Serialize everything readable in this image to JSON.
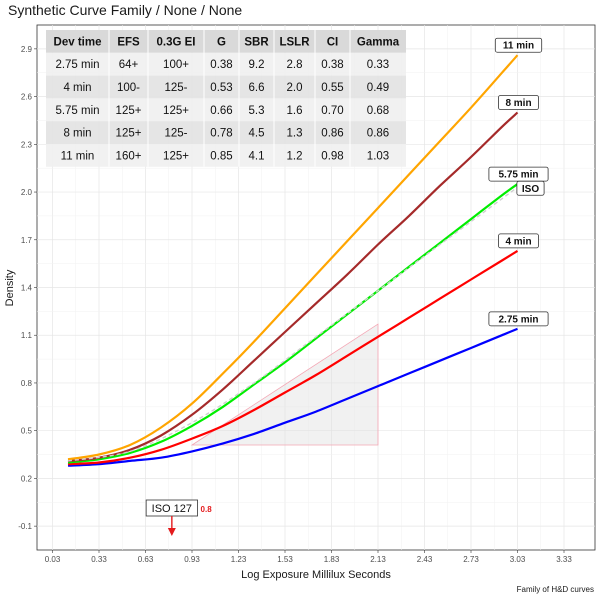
{
  "chart_data": {
    "type": "line",
    "title": "Synthetic Curve Family / None / None",
    "xlabel": "Log Exposure Millilux Seconds",
    "ylabel": "Density",
    "caption": "Family of H&D curves",
    "xlim": [
      -0.07,
      3.53
    ],
    "ylim": [
      -0.25,
      3.05
    ],
    "x_ticks": [
      "0.03",
      "0.33",
      "0.63",
      "0.93",
      "1.23",
      "1.53",
      "1.83",
      "2.13",
      "2.43",
      "2.73",
      "3.03",
      "3.33"
    ],
    "y_ticks": [
      "-0.1",
      "0.2",
      "0.5",
      "0.8",
      "1.1",
      "1.4",
      "1.7",
      "2.0",
      "2.3",
      "2.6",
      "2.9"
    ],
    "grid": true,
    "series": [
      {
        "name": "2.75 min",
        "color": "#0000ff",
        "x": [
          0.13,
          0.33,
          0.53,
          0.73,
          0.93,
          1.13,
          1.33,
          1.53,
          1.73,
          1.93,
          2.13,
          2.33,
          2.53,
          2.73,
          2.93,
          3.03
        ],
        "y": [
          0.28,
          0.29,
          0.31,
          0.33,
          0.37,
          0.42,
          0.48,
          0.55,
          0.62,
          0.7,
          0.78,
          0.86,
          0.94,
          1.02,
          1.1,
          1.14
        ]
      },
      {
        "name": "4 min",
        "color": "#ff0000",
        "x": [
          0.13,
          0.33,
          0.53,
          0.73,
          0.93,
          1.13,
          1.33,
          1.53,
          1.73,
          1.93,
          2.13,
          2.33,
          2.53,
          2.73,
          2.93,
          3.03
        ],
        "y": [
          0.29,
          0.3,
          0.33,
          0.38,
          0.45,
          0.53,
          0.63,
          0.74,
          0.85,
          0.97,
          1.09,
          1.21,
          1.33,
          1.45,
          1.57,
          1.63
        ]
      },
      {
        "name": "5.75 min",
        "color": "#00ee00",
        "x": [
          0.13,
          0.33,
          0.53,
          0.73,
          0.93,
          1.13,
          1.33,
          1.53,
          1.73,
          1.93,
          2.13,
          2.33,
          2.53,
          2.73,
          2.93,
          3.03
        ],
        "y": [
          0.3,
          0.32,
          0.36,
          0.43,
          0.53,
          0.65,
          0.79,
          0.93,
          1.08,
          1.23,
          1.38,
          1.53,
          1.68,
          1.83,
          1.98,
          2.05
        ]
      },
      {
        "name": "8 min",
        "color": "#a52a2a",
        "x": [
          0.13,
          0.33,
          0.53,
          0.73,
          0.93,
          1.13,
          1.33,
          1.53,
          1.73,
          1.93,
          2.13,
          2.33,
          2.53,
          2.73,
          2.93,
          3.03
        ],
        "y": [
          0.31,
          0.33,
          0.38,
          0.47,
          0.6,
          0.76,
          0.94,
          1.12,
          1.3,
          1.48,
          1.67,
          1.85,
          2.04,
          2.22,
          2.41,
          2.5
        ]
      },
      {
        "name": "11 min",
        "color": "#ffa500",
        "x": [
          0.13,
          0.33,
          0.53,
          0.73,
          0.93,
          1.13,
          1.33,
          1.53,
          1.73,
          1.93,
          2.13,
          2.33,
          2.53,
          2.73,
          2.93,
          3.03
        ],
        "y": [
          0.32,
          0.35,
          0.41,
          0.52,
          0.67,
          0.86,
          1.06,
          1.27,
          1.48,
          1.69,
          1.9,
          2.11,
          2.32,
          2.53,
          2.75,
          2.86
        ]
      }
    ],
    "iso_curve": {
      "x": [
        0.13,
        0.53,
        0.93,
        1.33,
        1.73,
        2.13,
        2.53,
        3.03
      ],
      "y": [
        0.31,
        0.37,
        0.55,
        0.8,
        1.09,
        1.38,
        1.67,
        2.03
      ]
    },
    "iso_triangle": {
      "x": [
        0.93,
        2.13,
        2.13
      ],
      "y": [
        0.41,
        0.41,
        1.17
      ]
    },
    "labels": {
      "curve_box_iso": "ISO",
      "iso_marker_label": "ISO 127",
      "iso_marker_value": "0.8",
      "iso_marker_x": 0.8
    },
    "table": {
      "columns": [
        "Dev time",
        "EFS",
        "0.3G EI",
        "G",
        "SBR",
        "LSLR",
        "CI",
        "Gamma"
      ],
      "rows": [
        [
          "2.75 min",
          "64+",
          "100+",
          "0.38",
          "9.2",
          "2.8",
          "0.38",
          "0.33"
        ],
        [
          "4 min",
          "100-",
          "125-",
          "0.53",
          "6.6",
          "2.0",
          "0.55",
          "0.49"
        ],
        [
          "5.75 min",
          "125+",
          "125+",
          "0.66",
          "5.3",
          "1.6",
          "0.70",
          "0.68"
        ],
        [
          "8 min",
          "125+",
          "125-",
          "0.78",
          "4.5",
          "1.3",
          "0.86",
          "0.86"
        ],
        [
          "11 min",
          "160+",
          "125+",
          "0.85",
          "4.1",
          "1.2",
          "0.98",
          "1.03"
        ]
      ]
    }
  }
}
